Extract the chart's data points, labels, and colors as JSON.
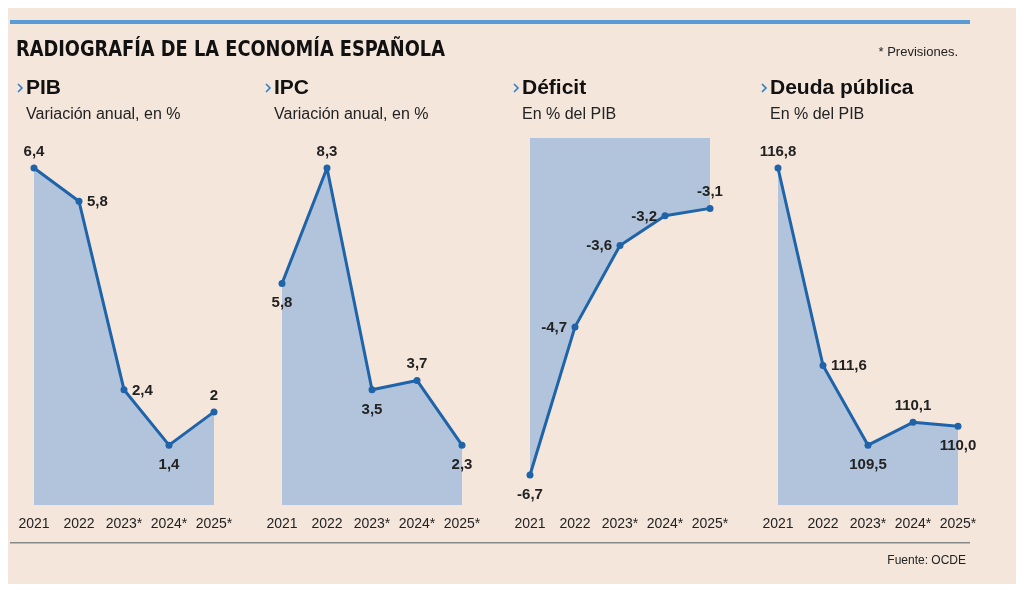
{
  "chart_data": [
    {
      "type": "area",
      "title": "PIB",
      "subtitle": "Variación anual, en %",
      "annotations": [
        "RADIOGRAFÍA DE LA ECONOMÍA ESPAÑOLA"
      ],
      "categories": [
        "2021",
        "2022",
        "2023*",
        "2024*",
        "2025*"
      ],
      "series": [
        {
          "color": "#1f63a8",
          "values": [
            6.4,
            5.8,
            2.4,
            1.4,
            2
          ],
          "value_labels": [
            "6,4",
            "5,8",
            "2,4",
            "1,4",
            "2"
          ]
        }
      ]
    },
    {
      "type": "area",
      "title": "IPC",
      "subtitle": "Variación anual, en %",
      "categories": [
        "2021",
        "2022",
        "2023*",
        "2024*",
        "2025*"
      ],
      "series": [
        {
          "color": "#1f63a8",
          "values": [
            5.8,
            8.3,
            3.5,
            3.7,
            2.3
          ],
          "value_labels": [
            "5,8",
            "8,3",
            "3,5",
            "3,7",
            "2,3"
          ]
        }
      ]
    },
    {
      "type": "area",
      "title": "Déficit",
      "subtitle": "En % del PIB",
      "categories": [
        "2021",
        "2022",
        "2023*",
        "2024*",
        "2025*"
      ],
      "series": [
        {
          "color": "#1f63a8",
          "values": [
            -6.7,
            -4.7,
            -3.6,
            -3.2,
            -3.1
          ],
          "value_labels": [
            "-6,7",
            "-4,7",
            "-3,6",
            "-3,2",
            "-3,1"
          ]
        }
      ]
    },
    {
      "type": "area",
      "title": "Deuda pública",
      "subtitle": "En % del PIB",
      "annotations": [
        "* Previsiones.",
        "Fuente: OCDE"
      ],
      "categories": [
        "2021",
        "2022",
        "2023*",
        "2024*",
        "2025*"
      ],
      "series": [
        {
          "color": "#1f63a8",
          "values": [
            116.8,
            111.6,
            109.5,
            110.1,
            110.0
          ],
          "value_labels": [
            "116,8",
            "111,6",
            "109,5",
            "110,1",
            "110,0"
          ]
        }
      ]
    }
  ]
}
